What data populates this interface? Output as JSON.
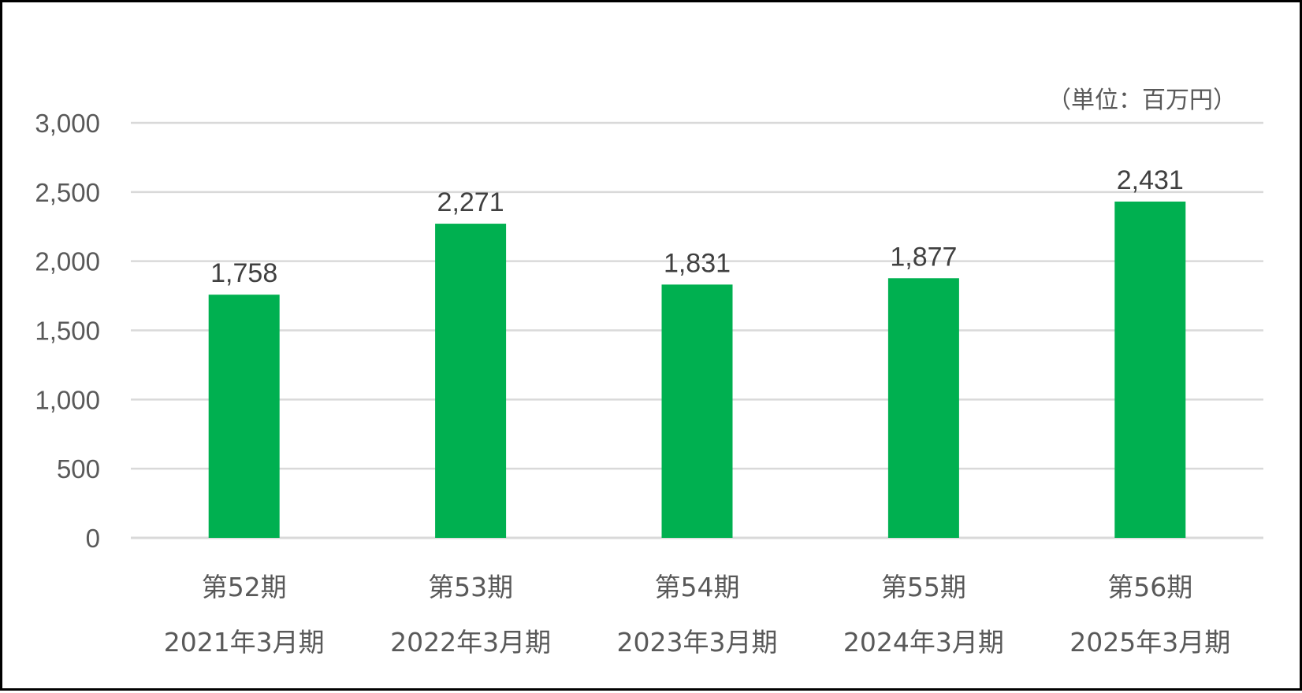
{
  "chart_data": {
    "type": "bar",
    "unit_label": "（単位：百万円）",
    "categories": [
      {
        "period": "第52期",
        "fiscal_year": "2021年3月期"
      },
      {
        "period": "第53期",
        "fiscal_year": "2022年3月期"
      },
      {
        "period": "第54期",
        "fiscal_year": "2023年3月期"
      },
      {
        "period": "第55期",
        "fiscal_year": "2024年3月期"
      },
      {
        "period": "第56期",
        "fiscal_year": "2025年3月期"
      }
    ],
    "values": [
      1758,
      2271,
      1831,
      1877,
      2431
    ],
    "data_labels": [
      "1,758",
      "2,271",
      "1,831",
      "1,877",
      "2,431"
    ],
    "ylim": [
      0,
      3000
    ],
    "yticks": [
      0,
      500,
      1000,
      1500,
      2000,
      2500,
      3000
    ],
    "ytick_labels": [
      "0",
      "500",
      "1,000",
      "1,500",
      "2,000",
      "2,500",
      "3,000"
    ],
    "grid": true,
    "colors": {
      "bar": "#00B050",
      "grid": "#D9D9D9",
      "axis_text": "#595959",
      "label_text": "#404040",
      "border": "#000000"
    }
  }
}
